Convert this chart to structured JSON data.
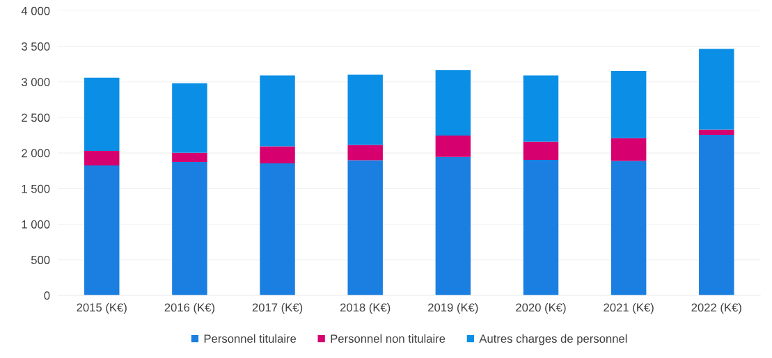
{
  "chart_data": {
    "type": "bar",
    "stacked": true,
    "categories": [
      "2015 (K€)",
      "2016 (K€)",
      "2017 (K€)",
      "2018 (K€)",
      "2019 (K€)",
      "2020 (K€)",
      "2021 (K€)",
      "2022 (K€)"
    ],
    "series": [
      {
        "name": "Personnel titulaire",
        "color": "#1a7fe0",
        "values": [
          1825,
          1875,
          1855,
          1900,
          1945,
          1905,
          1890,
          2255
        ]
      },
      {
        "name": "Personnel non titulaire",
        "color": "#d6006e",
        "values": [
          205,
          130,
          240,
          215,
          300,
          255,
          320,
          75
        ]
      },
      {
        "name": "Autres charges de personnel",
        "color": "#0b8fe6",
        "values": [
          1030,
          975,
          995,
          985,
          920,
          930,
          945,
          1135
        ]
      }
    ],
    "ylim": [
      0,
      4000
    ],
    "yticks": [
      {
        "value": 0,
        "label": "0"
      },
      {
        "value": 500,
        "label": "500"
      },
      {
        "value": 1000,
        "label": "1 000"
      },
      {
        "value": 1500,
        "label": "1 500"
      },
      {
        "value": 2000,
        "label": "2 000"
      },
      {
        "value": 2500,
        "label": "2 500"
      },
      {
        "value": 3000,
        "label": "3 000"
      },
      {
        "value": 3500,
        "label": "3 500"
      },
      {
        "value": 4000,
        "label": "4 000"
      }
    ],
    "grid": "y",
    "legend": "bottom"
  }
}
